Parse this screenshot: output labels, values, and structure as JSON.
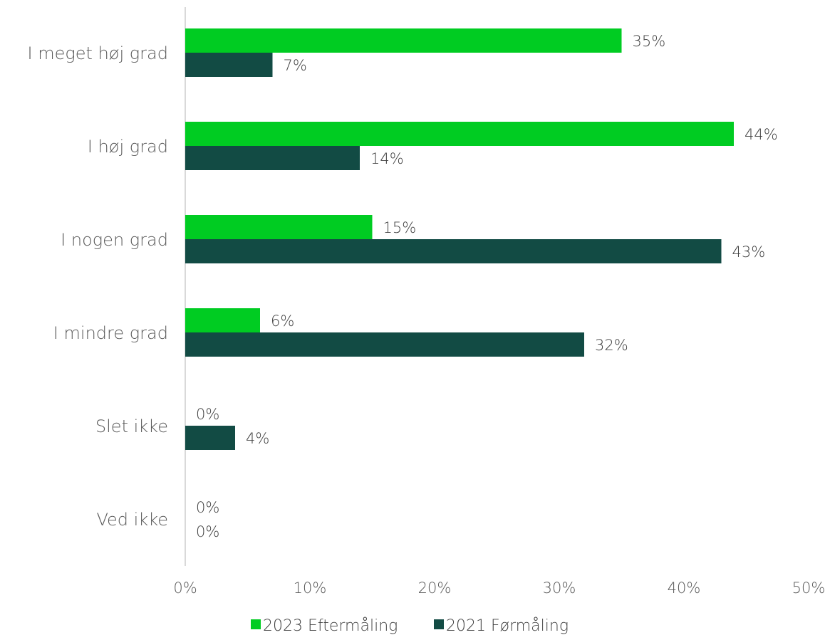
{
  "chart_data": {
    "type": "bar",
    "orientation": "horizontal",
    "categories": [
      "I meget høj grad",
      "I høj grad",
      "I nogen grad",
      "I mindre grad",
      "Slet ikke",
      "Ved ikke"
    ],
    "series": [
      {
        "name": "2023 Eftermåling",
        "color": "#00cc22",
        "values": [
          35,
          44,
          15,
          6,
          0,
          0
        ],
        "labels": [
          "35%",
          "44%",
          "15%",
          "6%",
          "0%",
          "0%"
        ]
      },
      {
        "name": "2021 Førmåling",
        "color": "#124b44",
        "values": [
          7,
          14,
          43,
          32,
          4,
          0
        ],
        "labels": [
          "7%",
          "14%",
          "43%",
          "32%",
          "4%",
          "0%"
        ]
      }
    ],
    "xlim": [
      0,
      50
    ],
    "xticks": [
      0,
      10,
      20,
      30,
      40,
      50
    ],
    "xtick_labels": [
      "0%",
      "10%",
      "20%",
      "30%",
      "40%",
      "50%"
    ],
    "grid": false,
    "legend_position": "bottom-center"
  }
}
